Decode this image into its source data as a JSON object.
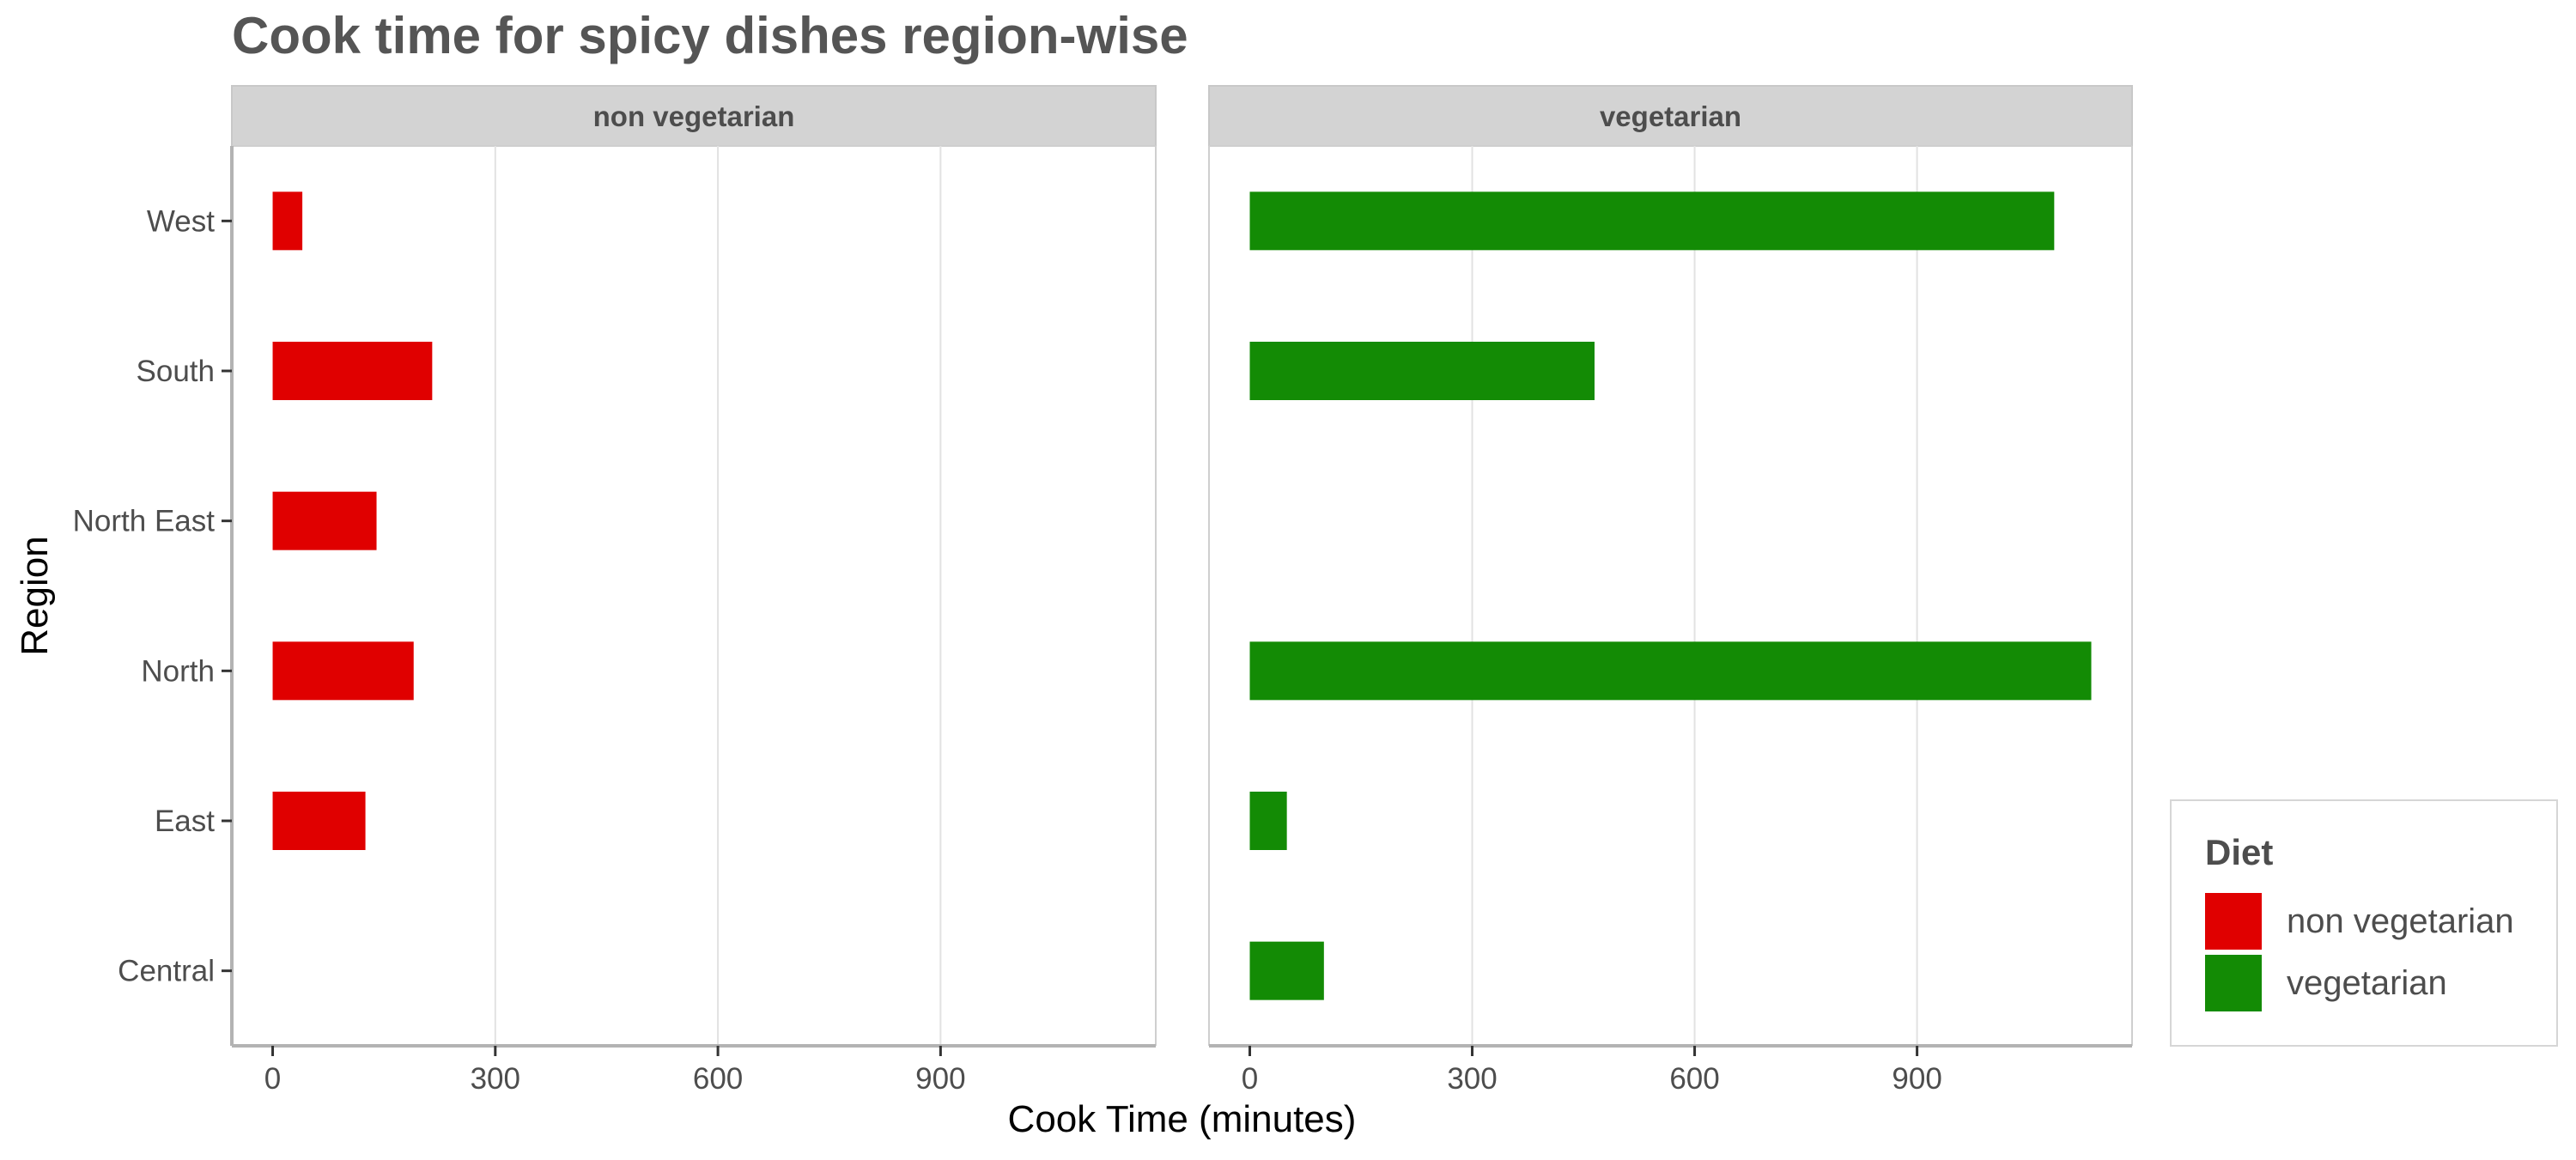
{
  "chart_data": {
    "type": "bar",
    "orientation": "horizontal",
    "title": "Cook time for spicy dishes region-wise",
    "xlabel": "Cook Time (minutes)",
    "ylabel": "Region",
    "categories": [
      "Central",
      "East",
      "North",
      "North East",
      "South",
      "West"
    ],
    "xlim": [
      -55,
      1190
    ],
    "x_ticks": [
      0,
      300,
      600,
      900
    ],
    "grid": "vertical",
    "legend": {
      "title": "Diet",
      "placement": "right",
      "entries": [
        {
          "label": "non vegetarian",
          "color": "#E00000"
        },
        {
          "label": "vegetarian",
          "color": "#138B05"
        }
      ]
    },
    "panels": [
      {
        "label": "non vegetarian",
        "color": "#E00000",
        "values": {
          "Central": null,
          "East": 125,
          "North": 190,
          "North East": 140,
          "South": 215,
          "West": 40
        }
      },
      {
        "label": "vegetarian",
        "color": "#138B05",
        "values": {
          "Central": 100,
          "East": 50,
          "North": 1135,
          "North East": null,
          "South": 465,
          "West": 1085
        }
      }
    ]
  }
}
